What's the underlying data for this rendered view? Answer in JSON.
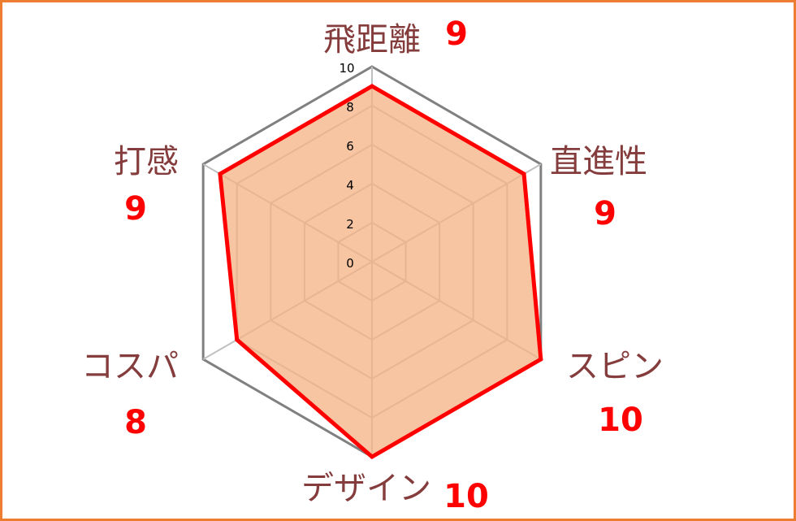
{
  "chart_data": {
    "type": "radar",
    "categories": [
      "飛距離",
      "直進性",
      "スピン",
      "デザイン",
      "コスパ",
      "打感"
    ],
    "values": [
      9,
      9,
      10,
      10,
      8,
      9
    ],
    "value_labels": [
      "9",
      "9",
      "10",
      "10",
      "8",
      "9"
    ],
    "rlim": [
      0,
      10
    ],
    "ticks": [
      "0",
      "2",
      "4",
      "6",
      "8",
      "10"
    ],
    "tick_values": [
      0,
      2,
      4,
      6,
      8,
      10
    ],
    "grid": true,
    "colors": {
      "series_line": "#FF0000",
      "series_fill": "#F4B183",
      "outer_grid": "#808080",
      "inner_grid": "#BFBFBF",
      "category_text": "#843C3C",
      "value_text": "#FF0000",
      "frame": "#ED7D31"
    }
  }
}
